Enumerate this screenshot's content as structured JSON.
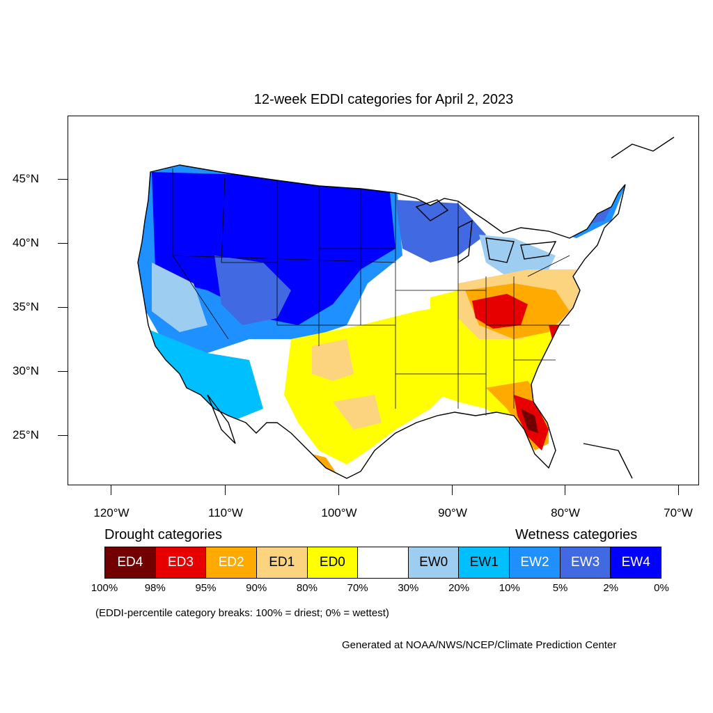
{
  "title": "12-week EDDI categories for April 2, 2023",
  "lat_labels": [
    "45°N",
    "40°N",
    "35°N",
    "30°N",
    "25°N"
  ],
  "lon_labels": [
    "120°W",
    "110°W",
    "100°W",
    "90°W",
    "80°W",
    "70°W"
  ],
  "legend": {
    "drought_heading": "Drought categories",
    "wetness_heading": "Wetness categories",
    "categories": [
      {
        "label": "ED4",
        "color": "#730000",
        "text_color": "#ffffff"
      },
      {
        "label": "ED3",
        "color": "#e60000",
        "text_color": "#ffffff"
      },
      {
        "label": "ED2",
        "color": "#ffaa00",
        "text_color": "#ffffff"
      },
      {
        "label": "ED1",
        "color": "#fcd37f",
        "text_color": "#000000"
      },
      {
        "label": "ED0",
        "color": "#ffff00",
        "text_color": "#000000"
      },
      {
        "label": "",
        "color": "#ffffff",
        "text_color": "#000000"
      },
      {
        "label": "EW0",
        "color": "#9dcdf0",
        "text_color": "#000000"
      },
      {
        "label": "EW1",
        "color": "#00bfff",
        "text_color": "#000000"
      },
      {
        "label": "EW2",
        "color": "#1e90ff",
        "text_color": "#ffffff"
      },
      {
        "label": "EW3",
        "color": "#4169e1",
        "text_color": "#ffffff"
      },
      {
        "label": "EW4",
        "color": "#0000ff",
        "text_color": "#ffffff"
      }
    ],
    "breaks": [
      "100%",
      "98%",
      "95%",
      "90%",
      "80%",
      "70%",
      "30%",
      "20%",
      "10%",
      "5%",
      "2%",
      "0%"
    ]
  },
  "note": "(EDDI-percentile category breaks: 100% = driest; 0% = wettest)",
  "credit": "Generated at NOAA/NWS/NCEP/Climate Prediction Center"
}
